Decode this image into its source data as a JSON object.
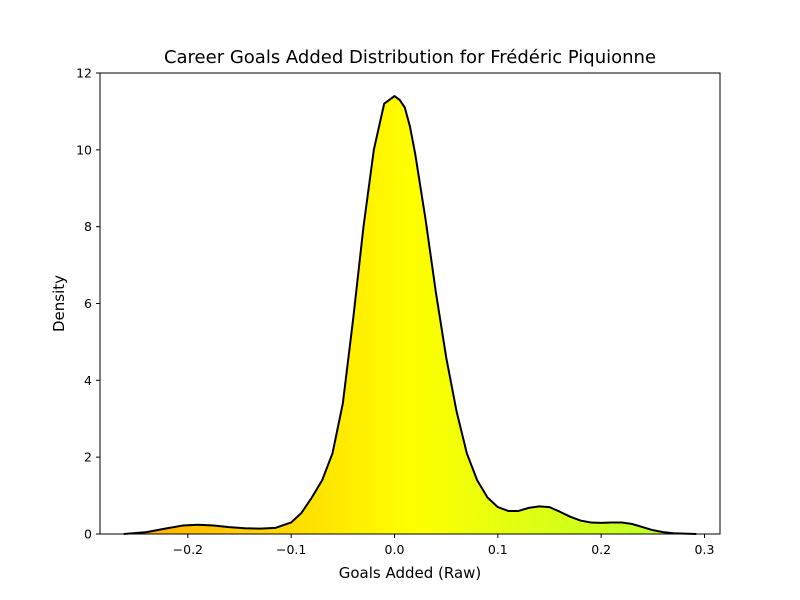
{
  "chart_data": {
    "type": "area",
    "title": "Career Goals Added Distribution for Frédéric Piquionne",
    "xlabel": "Goals Added (Raw)",
    "ylabel": "Density",
    "xlim": [
      -0.285,
      0.315
    ],
    "ylim": [
      0,
      12
    ],
    "x_ticks": [
      -0.2,
      -0.1,
      0.0,
      0.1,
      0.2,
      0.3
    ],
    "x_tick_labels": [
      "−0.2",
      "−0.1",
      "0.0",
      "0.1",
      "0.2",
      "0.3"
    ],
    "y_ticks": [
      0,
      2,
      4,
      6,
      8,
      10,
      12
    ],
    "y_tick_labels": [
      "0",
      "2",
      "4",
      "6",
      "8",
      "10",
      "12"
    ],
    "grid": false,
    "line_color": "#000000",
    "fill_colormap": [
      "#ffa500",
      "#ffff00",
      "#adff2f"
    ],
    "series": [
      {
        "x": [
          -0.262,
          -0.24,
          -0.22,
          -0.205,
          -0.19,
          -0.175,
          -0.16,
          -0.145,
          -0.13,
          -0.115,
          -0.1,
          -0.09,
          -0.08,
          -0.07,
          -0.06,
          -0.05,
          -0.04,
          -0.03,
          -0.02,
          -0.01,
          0.0,
          0.005,
          0.01,
          0.015,
          0.02,
          0.03,
          0.04,
          0.05,
          0.06,
          0.07,
          0.08,
          0.09,
          0.1,
          0.11,
          0.12,
          0.13,
          0.14,
          0.15,
          0.16,
          0.17,
          0.18,
          0.19,
          0.2,
          0.21,
          0.22,
          0.23,
          0.24,
          0.25,
          0.26,
          0.27,
          0.28,
          0.292
        ],
        "y": [
          0.0,
          0.05,
          0.15,
          0.22,
          0.24,
          0.22,
          0.18,
          0.15,
          0.14,
          0.16,
          0.3,
          0.55,
          0.95,
          1.4,
          2.1,
          3.4,
          5.6,
          8.0,
          10.0,
          11.2,
          11.4,
          11.3,
          11.1,
          10.6,
          9.9,
          8.2,
          6.3,
          4.6,
          3.2,
          2.1,
          1.4,
          0.95,
          0.7,
          0.6,
          0.6,
          0.68,
          0.72,
          0.7,
          0.58,
          0.45,
          0.35,
          0.3,
          0.29,
          0.3,
          0.3,
          0.26,
          0.18,
          0.1,
          0.05,
          0.02,
          0.01,
          0.0
        ]
      }
    ]
  }
}
